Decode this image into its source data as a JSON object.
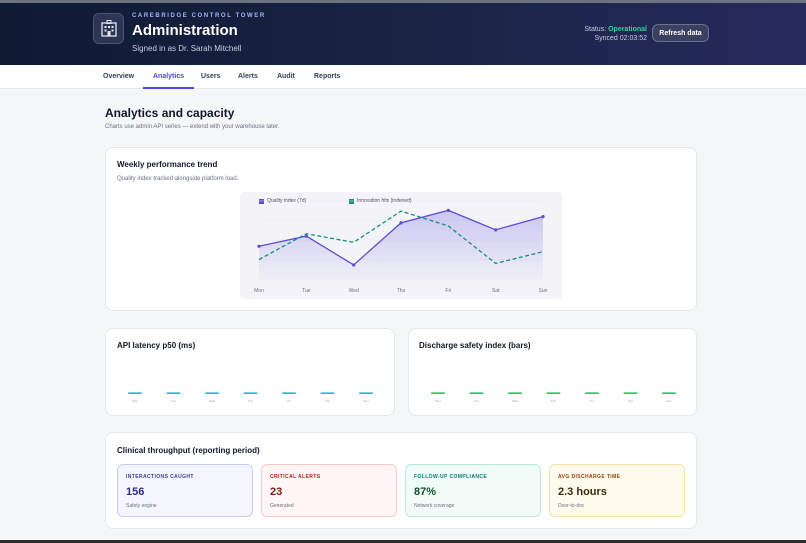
{
  "header": {
    "kicker": "CAREBRIDGE CONTROL TOWER",
    "title": "Administration",
    "subtitle": "Signed in as Dr. Sarah Mitchell",
    "status_label": "Status:",
    "status_value": "Operational",
    "synced": "Synced 02:03:52",
    "refresh_label": "Refresh data",
    "logo_icon": "hospital-icon"
  },
  "nav": {
    "tabs": [
      {
        "label": "Overview"
      },
      {
        "label": "Analytics",
        "active": true
      },
      {
        "label": "Users"
      },
      {
        "label": "Alerts"
      },
      {
        "label": "Audit"
      },
      {
        "label": "Reports"
      }
    ]
  },
  "main": {
    "title": "Analytics and capacity",
    "lead": "Charts use admin API series — extend with your warehouse later."
  },
  "trend": {
    "title": "Weekly performance trend",
    "subtitle": "Quality index tracked alongside platform load."
  },
  "latency": {
    "title": "API latency p50 (ms)"
  },
  "safety": {
    "title": "Discharge safety index (bars)"
  },
  "throughput": {
    "title": "Clinical throughput (reporting period)",
    "metrics": [
      {
        "label": "INTERACTIONS CAUGHT",
        "value": "156",
        "note": "Safety engine"
      },
      {
        "label": "CRITICAL ALERTS",
        "value": "23",
        "note": "Generated"
      },
      {
        "label": "FOLLOW-UP COMPLIANCE",
        "value": "87%",
        "note": "Network coverage"
      },
      {
        "label": "AVG DISCHARGE TIME",
        "value": "2.3 hours",
        "note": "Door-to-doc"
      }
    ]
  },
  "chart_data": [
    {
      "type": "line",
      "title": "Weekly performance trend",
      "categories": [
        "Mon",
        "Tue",
        "Wed",
        "Thu",
        "Fri",
        "Sat",
        "Sun"
      ],
      "legend_position": "top",
      "series": [
        {
          "name": "Quality index (7d)",
          "values": [
            42,
            55,
            18,
            72,
            88,
            63,
            80
          ],
          "color": "#5b4fd1",
          "style": "solid-area"
        },
        {
          "name": "Innovation hits (indexed)",
          "values": [
            25,
            58,
            47,
            87,
            68,
            20,
            35
          ],
          "color": "#13927c",
          "style": "dashed"
        }
      ],
      "ylim": [
        0,
        100
      ],
      "grid": true
    },
    {
      "type": "bar",
      "title": "API latency p50 (ms)",
      "categories": [
        "Mon",
        "Tue",
        "Wed",
        "Thu",
        "Fri",
        "Sat",
        "Sun"
      ],
      "values": [
        0,
        0,
        0,
        0,
        0,
        0,
        0
      ],
      "color": "#22b8d6"
    },
    {
      "type": "bar",
      "title": "Discharge safety index (bars)",
      "categories": [
        "Mon",
        "Tue",
        "Wed",
        "Thu",
        "Fri",
        "Sat",
        "Sun"
      ],
      "values": [
        0,
        0,
        0,
        0,
        0,
        0,
        0
      ],
      "color": "#22c55e"
    }
  ]
}
